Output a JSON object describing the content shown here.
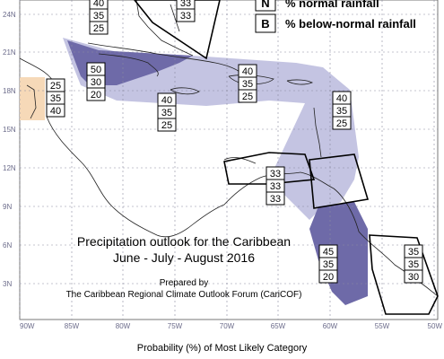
{
  "map": {
    "title_line1": "Precipitation outlook for the Caribbean",
    "title_line2": "June - July - August 2016",
    "prepared_by": "Prepared by",
    "organization": "The Caribbean Regional Climate Outlook Forum (CariCOF)",
    "axis_caption": "Probability (%) of Most Likely Category"
  },
  "legend": [
    {
      "letter": "N",
      "label": "% normal rainfall"
    },
    {
      "letter": "B",
      "label": "% below-normal rainfall"
    }
  ],
  "lat_labels": [
    "24N",
    "21N",
    "18N",
    "15N",
    "12N",
    "9N",
    "6N",
    "3N"
  ],
  "lon_labels": [
    "90W",
    "85W",
    "80W",
    "75W",
    "70W",
    "65W",
    "60W",
    "55W",
    "50W"
  ],
  "prob_boxes": [
    {
      "id": "bahamas-top",
      "values": [
        "40",
        "35",
        "25"
      ]
    },
    {
      "id": "bahamas-east",
      "values": [
        "33",
        "33"
      ]
    },
    {
      "id": "central-america",
      "values": [
        "25",
        "35",
        "40"
      ]
    },
    {
      "id": "cayman-cuba",
      "values": [
        "50",
        "30",
        "20"
      ]
    },
    {
      "id": "jamaica-south",
      "values": [
        "40",
        "35",
        "25"
      ]
    },
    {
      "id": "hispaniola",
      "values": [
        "40",
        "35",
        "25"
      ]
    },
    {
      "id": "lesser-antilles",
      "values": [
        "40",
        "35",
        "25"
      ]
    },
    {
      "id": "abc-islands",
      "values": [
        "33",
        "33",
        "33"
      ]
    },
    {
      "id": "guyana",
      "values": [
        "45",
        "35",
        "20"
      ]
    },
    {
      "id": "suriname",
      "values": [
        "35",
        "35",
        "30"
      ]
    }
  ],
  "colors": {
    "above_normal_light": "#c4c4e2",
    "above_normal_dark": "#6e6aa8",
    "below_normal": "#f6d9b8",
    "outline": "#000000",
    "grid": "#8a8aa0"
  }
}
